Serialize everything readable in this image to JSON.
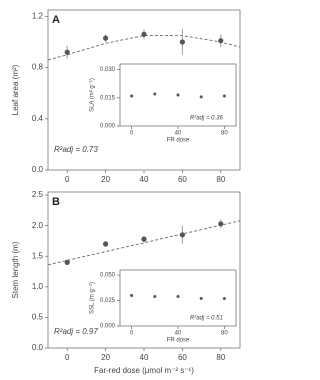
{
  "chart_data": [
    {
      "type": "scatter",
      "panel_label": "A",
      "ylabel": "Leaf area (m²)",
      "x": [
        0,
        20,
        40,
        60,
        80
      ],
      "values": [
        0.92,
        1.03,
        1.06,
        1.0,
        1.01
      ],
      "errors": [
        0.05,
        0.03,
        0.04,
        0.1,
        0.05
      ],
      "fit": {
        "x": [
          -10,
          0,
          20,
          40,
          60,
          80,
          90
        ],
        "values": [
          0.86,
          0.9,
          0.99,
          1.05,
          1.05,
          1.0,
          0.96
        ]
      },
      "annotation": "R²adj = 0.73",
      "color": "#555555",
      "xlim": [
        -10,
        90
      ],
      "xticks": [
        0,
        20,
        40,
        60,
        80
      ],
      "ylim": [
        0,
        1.25
      ],
      "yticks": [
        {
          "value": 0,
          "label": "0.0"
        },
        0.4,
        0.8,
        1.2
      ]
    },
    {
      "type": "scatter",
      "ylabel": "SLA (m² g⁻¹)",
      "xlabel": "FR dose",
      "x": [
        0,
        20,
        40,
        60,
        80
      ],
      "values": [
        0.016,
        0.017,
        0.0165,
        0.0155,
        0.016
      ],
      "annotation": "R²adj = 0.36",
      "color": "#555555",
      "xlim": [
        -10,
        90
      ],
      "xticks": [
        0,
        40,
        80
      ],
      "ylim": [
        0,
        0.033
      ],
      "yticks": [
        {
          "value": 0,
          "label": "0.000"
        },
        {
          "value": 0.015,
          "label": "0.015"
        },
        {
          "value": 0.03,
          "label": "0.030"
        }
      ]
    },
    {
      "type": "scatter",
      "panel_label": "B",
      "ylabel": "Stem length (m)",
      "xlabel": "Far-red dose (μmol m⁻² s⁻¹)",
      "x": [
        0,
        20,
        40,
        60,
        80
      ],
      "values": [
        1.4,
        1.7,
        1.78,
        1.85,
        2.03
      ],
      "errors": [
        0.04,
        0.05,
        0.05,
        0.15,
        0.07
      ],
      "fit": {
        "x": [
          -10,
          90
        ],
        "values": [
          1.36,
          2.08
        ]
      },
      "annotation": "R²adj = 0.97",
      "color": "#555555",
      "xlim": [
        -10,
        90
      ],
      "xticks": [
        0,
        20,
        40,
        60,
        80
      ],
      "ylim": [
        0,
        2.55
      ],
      "yticks": [
        {
          "value": 0,
          "label": "0.0"
        },
        0.5,
        {
          "value": 1,
          "label": "1.0"
        },
        1.5,
        {
          "value": 2,
          "label": "2.0"
        },
        2.5
      ]
    },
    {
      "type": "scatter",
      "ylabel": "SSL (m g⁻¹)",
      "xlabel": "FR dose",
      "x": [
        0,
        20,
        40,
        60,
        80
      ],
      "values": [
        0.03,
        0.029,
        0.029,
        0.027,
        0.027
      ],
      "annotation": "R²adj = 0.51",
      "color": "#555555",
      "xlim": [
        -10,
        90
      ],
      "xticks": [
        0,
        40,
        80
      ],
      "ylim": [
        0,
        0.055
      ],
      "yticks": [
        {
          "value": 0,
          "label": "0.000"
        },
        {
          "value": 0.025,
          "label": "0.025"
        },
        {
          "value": 0.05,
          "label": "0.050"
        }
      ]
    }
  ]
}
